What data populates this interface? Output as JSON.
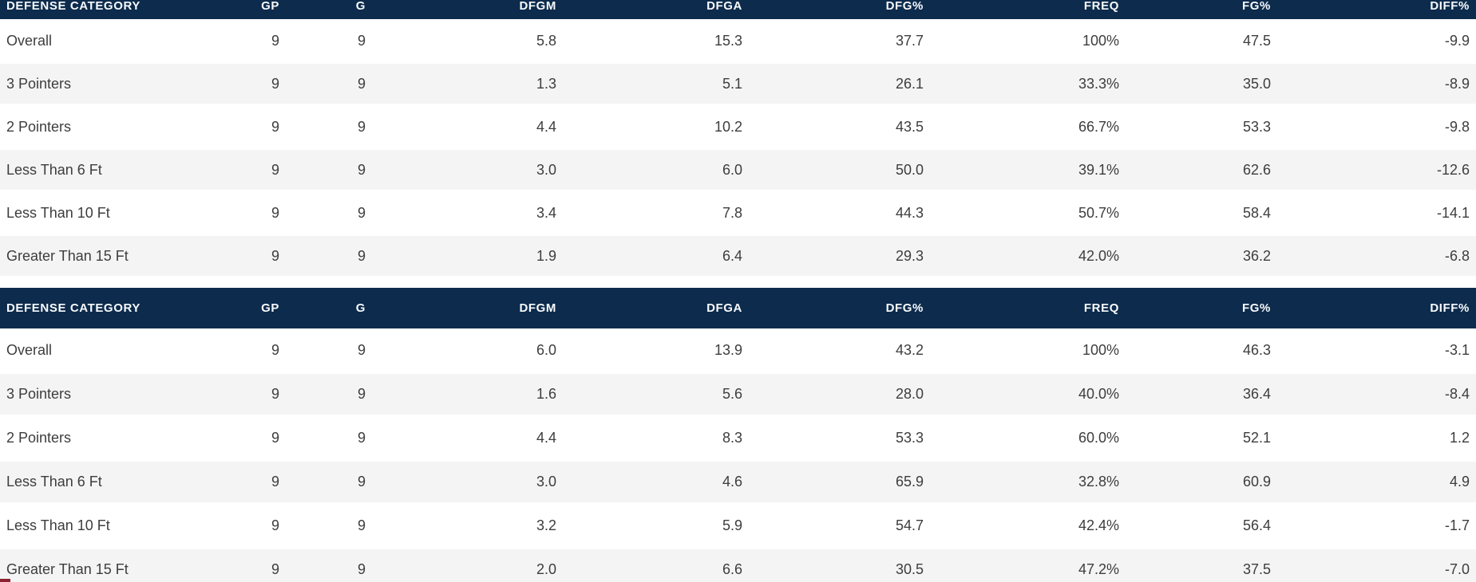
{
  "colors": {
    "header_bg": "#0d2b4c",
    "header_text": "#f7fafc",
    "row_alt_bg": "#f4f4f5",
    "row_bg": "#ffffff",
    "cell_text": "#3d3d3d",
    "corner_accent": "#8b2332"
  },
  "columns": [
    "DEFENSE CATEGORY",
    "GP",
    "G",
    "DFGM",
    "DFGA",
    "DFG%",
    "FREQ",
    "FG%",
    "DIFF%"
  ],
  "tables": [
    {
      "name": "defense-category-table-1",
      "rows": [
        {
          "category": "Overall",
          "values": [
            "9",
            "9",
            "5.8",
            "15.3",
            "37.7",
            "100%",
            "47.5",
            "-9.9"
          ]
        },
        {
          "category": "3 Pointers",
          "values": [
            "9",
            "9",
            "1.3",
            "5.1",
            "26.1",
            "33.3%",
            "35.0",
            "-8.9"
          ]
        },
        {
          "category": "2 Pointers",
          "values": [
            "9",
            "9",
            "4.4",
            "10.2",
            "43.5",
            "66.7%",
            "53.3",
            "-9.8"
          ]
        },
        {
          "category": "Less Than 6 Ft",
          "values": [
            "9",
            "9",
            "3.0",
            "6.0",
            "50.0",
            "39.1%",
            "62.6",
            "-12.6"
          ]
        },
        {
          "category": "Less Than 10 Ft",
          "values": [
            "9",
            "9",
            "3.4",
            "7.8",
            "44.3",
            "50.7%",
            "58.4",
            "-14.1"
          ]
        },
        {
          "category": "Greater Than 15 Ft",
          "values": [
            "9",
            "9",
            "1.9",
            "6.4",
            "29.3",
            "42.0%",
            "36.2",
            "-6.8"
          ]
        }
      ]
    },
    {
      "name": "defense-category-table-2",
      "rows": [
        {
          "category": "Overall",
          "values": [
            "9",
            "9",
            "6.0",
            "13.9",
            "43.2",
            "100%",
            "46.3",
            "-3.1"
          ]
        },
        {
          "category": "3 Pointers",
          "values": [
            "9",
            "9",
            "1.6",
            "5.6",
            "28.0",
            "40.0%",
            "36.4",
            "-8.4"
          ]
        },
        {
          "category": "2 Pointers",
          "values": [
            "9",
            "9",
            "4.4",
            "8.3",
            "53.3",
            "60.0%",
            "52.1",
            "1.2"
          ]
        },
        {
          "category": "Less Than 6 Ft",
          "values": [
            "9",
            "9",
            "3.0",
            "4.6",
            "65.9",
            "32.8%",
            "60.9",
            "4.9"
          ]
        },
        {
          "category": "Less Than 10 Ft",
          "values": [
            "9",
            "9",
            "3.2",
            "5.9",
            "54.7",
            "42.4%",
            "56.4",
            "-1.7"
          ]
        },
        {
          "category": "Greater Than 15 Ft",
          "values": [
            "9",
            "9",
            "2.0",
            "6.6",
            "30.5",
            "47.2%",
            "37.5",
            "-7.0"
          ]
        }
      ]
    }
  ]
}
